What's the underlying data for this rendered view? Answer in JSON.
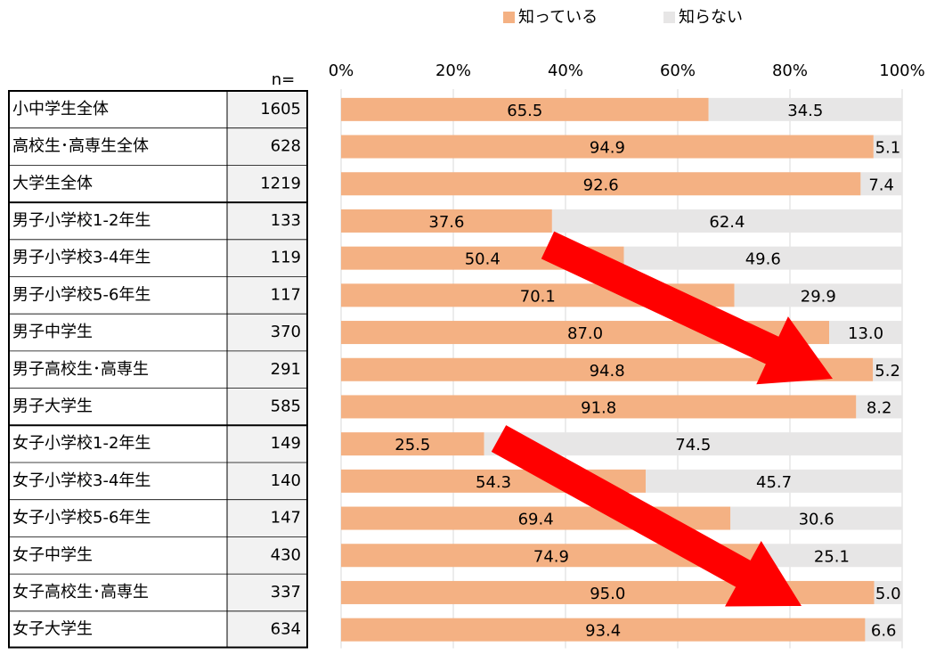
{
  "chart_data": {
    "type": "stacked_bar_100",
    "n_label": "n=",
    "categories": [
      "小中学生全体",
      "高校生･高専生全体",
      "大学生全体",
      "男子小学校1-2年生",
      "男子小学校3-4年生",
      "男子小学校5-6年生",
      "男子中学生",
      "男子高校生･高専生",
      "男子大学生",
      "女子小学校1-2年生",
      "女子小学校3-4年生",
      "女子小学校5-6年生",
      "女子中学生",
      "女子高校生･高専生",
      "女子大学生"
    ],
    "n": [
      1605,
      628,
      1219,
      133,
      119,
      117,
      370,
      291,
      585,
      149,
      140,
      147,
      430,
      337,
      634
    ],
    "series": [
      {
        "name": "知っている",
        "color": "#f4b183",
        "values": [
          65.5,
          94.9,
          92.6,
          37.6,
          50.4,
          70.1,
          87.0,
          94.8,
          91.8,
          25.5,
          54.3,
          69.4,
          74.9,
          95.0,
          93.4
        ],
        "value_labels": [
          "65.5",
          "94.9",
          "92.6",
          "37.6",
          "50.4",
          "70.1",
          "87.0",
          "94.8",
          "91.8",
          "25.5",
          "54.3",
          "69.4",
          "74.9",
          "95.0",
          "93.4"
        ]
      },
      {
        "name": "知らない",
        "color": "#e7e6e6",
        "values": [
          34.5,
          5.1,
          7.4,
          62.4,
          49.6,
          29.9,
          13.0,
          5.2,
          8.2,
          74.5,
          45.7,
          30.6,
          25.1,
          5.0,
          6.6
        ],
        "value_labels": [
          "34.5",
          "5.1",
          "7.4",
          "62.4",
          "49.6",
          "29.9",
          "13.0",
          "5.2",
          "8.2",
          "74.5",
          "45.7",
          "30.6",
          "25.1",
          "5.0",
          "6.6"
        ]
      }
    ],
    "xlim": [
      0,
      100
    ],
    "xticks": [
      {
        "value": 0,
        "label": "0%"
      },
      {
        "value": 20,
        "label": "20%"
      },
      {
        "value": 40,
        "label": "40%"
      },
      {
        "value": 60,
        "label": "60%"
      },
      {
        "value": 80,
        "label": "80%"
      },
      {
        "value": 100,
        "label": "100%"
      }
    ],
    "grid": true,
    "legend": "top"
  }
}
